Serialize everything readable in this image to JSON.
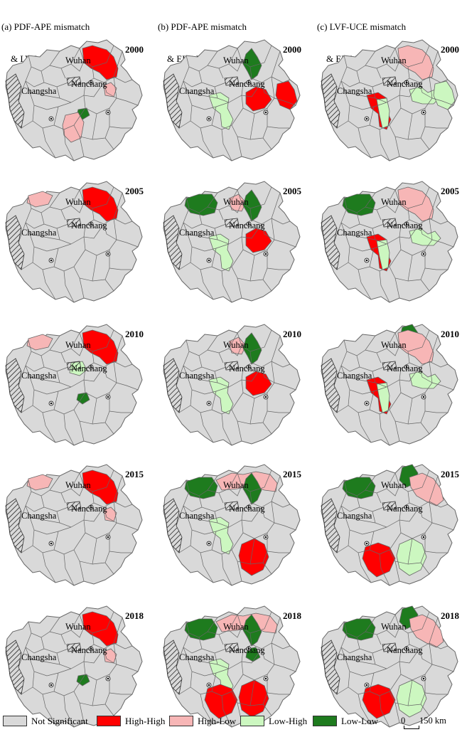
{
  "columns": [
    {
      "title_line1": "(a) PDF-APE mismatch",
      "title_line2": "& LVF-UCE mismatch"
    },
    {
      "title_line1": "(b) PDF-APE mismatch",
      "title_line2": "& ELF-ESE mismatch"
    },
    {
      "title_line1": "(c) LVF-UCE mismatch",
      "title_line2": "& ELF-ESE mismatch"
    }
  ],
  "years": [
    "2000",
    "2005",
    "2010",
    "2015",
    "2018"
  ],
  "cities": {
    "wuhan": "Wuhan",
    "changsha": "Changsha",
    "nanchang": "Nanchang"
  },
  "colors": {
    "not_significant": "#d9d9d9",
    "high_high": "#ff0000",
    "high_low": "#f7b6b6",
    "low_high": "#ccf7c0",
    "low_low": "#1e7b1e",
    "boundary": "#666666"
  },
  "legend": [
    {
      "key": "not_significant",
      "label": "Not Significant"
    },
    {
      "key": "high_high",
      "label": "High-High"
    },
    {
      "key": "high_low",
      "label": "High-Low"
    },
    {
      "key": "low_high",
      "label": "Low-High"
    },
    {
      "key": "low_low",
      "label": "Low-Low"
    }
  ],
  "scale_bar": {
    "zero": "0",
    "label": "150 km"
  },
  "clusters": [
    [
      [
        {
          "region": "wuhan-east",
          "class": "high_high"
        },
        {
          "region": "nanchang-north",
          "class": "high_low"
        },
        {
          "region": "central-south-small",
          "class": "low_low"
        },
        {
          "region": "south-central",
          "class": "high_low"
        }
      ],
      [
        {
          "region": "northwest",
          "class": "high_low"
        },
        {
          "region": "wuhan-east",
          "class": "high_high"
        }
      ],
      [
        {
          "region": "northwest",
          "class": "high_low"
        },
        {
          "region": "wuhan-east",
          "class": "high_high"
        },
        {
          "region": "central",
          "class": "low_high"
        },
        {
          "region": "central-south-small",
          "class": "low_low"
        }
      ],
      [
        {
          "region": "northwest",
          "class": "high_low"
        },
        {
          "region": "wuhan-east",
          "class": "high_high"
        },
        {
          "region": "nanchang-north",
          "class": "high_low"
        }
      ],
      [
        {
          "region": "wuhan-east",
          "class": "high_high"
        },
        {
          "region": "nanchang-north",
          "class": "high_low"
        },
        {
          "region": "central-south-small",
          "class": "low_low"
        }
      ]
    ],
    [
      [
        {
          "region": "wuhan-center",
          "class": "low_low"
        },
        {
          "region": "changsha-east",
          "class": "low_high"
        },
        {
          "region": "nanchang-west",
          "class": "high_high"
        },
        {
          "region": "east-far",
          "class": "high_high"
        }
      ],
      [
        {
          "region": "west-large",
          "class": "low_low"
        },
        {
          "region": "wuhan-west",
          "class": "high_low"
        },
        {
          "region": "wuhan-center",
          "class": "low_low"
        },
        {
          "region": "changsha-east",
          "class": "low_high"
        },
        {
          "region": "nanchang-west",
          "class": "high_high"
        }
      ],
      [
        {
          "region": "wuhan-west",
          "class": "high_low"
        },
        {
          "region": "wuhan-center",
          "class": "low_low"
        },
        {
          "region": "changsha-east",
          "class": "low_high"
        },
        {
          "region": "nanchang-west",
          "class": "high_high"
        }
      ],
      [
        {
          "region": "west-large",
          "class": "low_low"
        },
        {
          "region": "north-band",
          "class": "high_low"
        },
        {
          "region": "wuhan-center",
          "class": "low_low"
        },
        {
          "region": "changsha-east",
          "class": "low_high"
        },
        {
          "region": "south-east",
          "class": "high_high"
        }
      ],
      [
        {
          "region": "west-large",
          "class": "low_low"
        },
        {
          "region": "north-band",
          "class": "high_low"
        },
        {
          "region": "wuhan-center",
          "class": "low_low"
        },
        {
          "region": "wuhan-south",
          "class": "low_low"
        },
        {
          "region": "changsha-east",
          "class": "low_high"
        },
        {
          "region": "south-west",
          "class": "high_high"
        },
        {
          "region": "south-east",
          "class": "high_high"
        }
      ]
    ],
    [
      [
        {
          "region": "wuhan-east",
          "class": "high_low"
        },
        {
          "region": "changsha-east",
          "class": "high_high"
        },
        {
          "region": "changsha-south",
          "class": "low_high"
        },
        {
          "region": "nanchang-band",
          "class": "low_high"
        },
        {
          "region": "east-far",
          "class": "low_high"
        }
      ],
      [
        {
          "region": "west-large",
          "class": "low_low"
        },
        {
          "region": "wuhan-east",
          "class": "high_low"
        },
        {
          "region": "changsha-east",
          "class": "high_high"
        },
        {
          "region": "changsha-south",
          "class": "low_high"
        },
        {
          "region": "nanchang-band",
          "class": "low_high"
        }
      ],
      [
        {
          "region": "wuhan-top",
          "class": "low_low"
        },
        {
          "region": "wuhan-east",
          "class": "high_low"
        },
        {
          "region": "changsha-east",
          "class": "high_high"
        },
        {
          "region": "changsha-south",
          "class": "low_high"
        },
        {
          "region": "nanchang-band",
          "class": "low_high"
        }
      ],
      [
        {
          "region": "west-large",
          "class": "low_low"
        },
        {
          "region": "wuhan-top",
          "class": "low_low"
        },
        {
          "region": "north-east-band",
          "class": "high_low"
        },
        {
          "region": "south-west",
          "class": "high_high"
        },
        {
          "region": "south-east",
          "class": "low_high"
        }
      ],
      [
        {
          "region": "west-large",
          "class": "low_low"
        },
        {
          "region": "wuhan-top",
          "class": "low_low"
        },
        {
          "region": "north-east-band",
          "class": "high_low"
        },
        {
          "region": "south-west",
          "class": "high_high"
        },
        {
          "region": "south-east",
          "class": "low_high"
        }
      ]
    ]
  ]
}
